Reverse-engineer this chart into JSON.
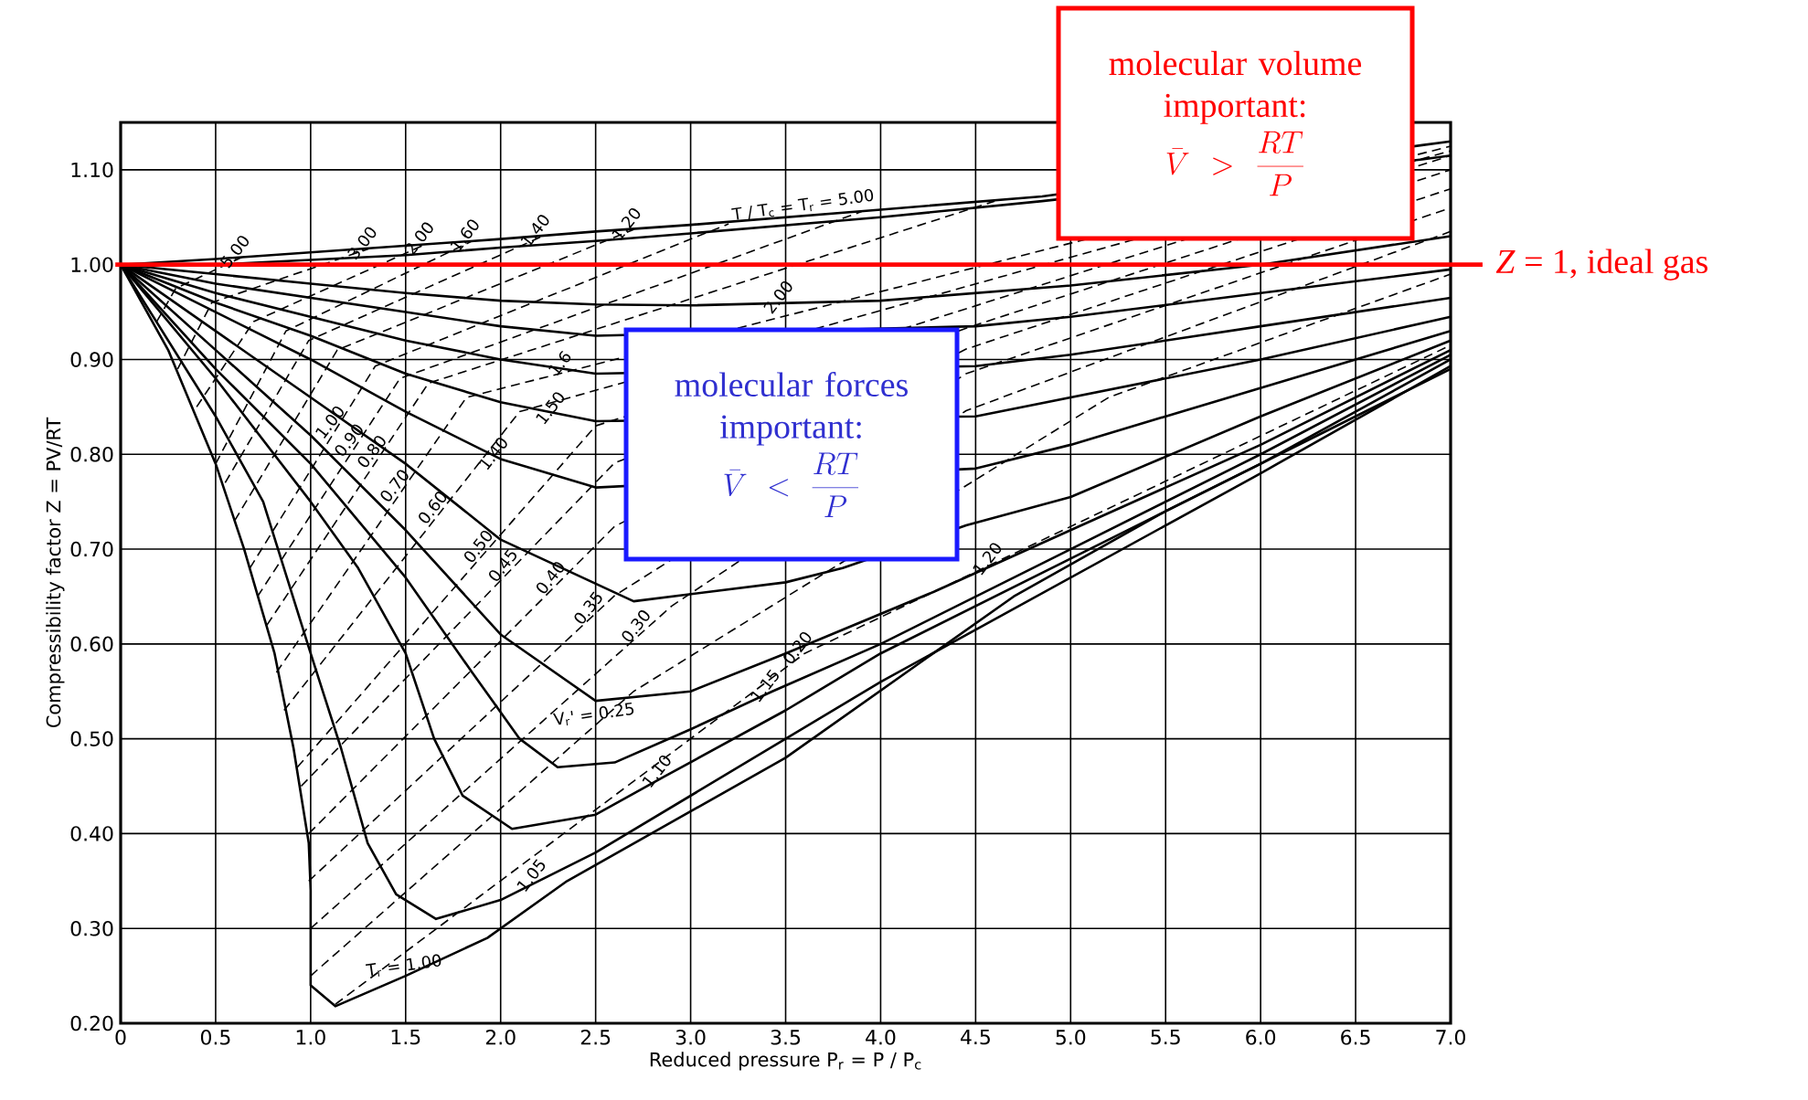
{
  "chart_data": {
    "type": "line",
    "xlabel": "Reduced pressure P$_{r}$ = P / P$_{c}$",
    "ylabel": "Compressibility factor Z = PV/RT",
    "xlim": [
      0,
      7
    ],
    "ylim": [
      0.2,
      1.15
    ],
    "xticks": [
      0,
      0.5,
      {
        "value": 1,
        "label": "1.0"
      },
      1.5,
      {
        "value": 2,
        "label": "2.0"
      },
      2.5,
      {
        "value": 3,
        "label": "3.0"
      },
      3.5,
      {
        "value": 4,
        "label": "4.0"
      },
      4.5,
      {
        "value": 5,
        "label": "5.0"
      },
      5.5,
      {
        "value": 6,
        "label": "6.0"
      },
      6.5,
      {
        "value": 7,
        "label": "7.0"
      }
    ],
    "yticks": [
      {
        "value": 0.2,
        "label": "0.20"
      },
      {
        "value": 0.3,
        "label": "0.30"
      },
      {
        "value": 0.4,
        "label": "0.40"
      },
      {
        "value": 0.5,
        "label": "0.50"
      },
      {
        "value": 0.6,
        "label": "0.60"
      },
      {
        "value": 0.7,
        "label": "0.70"
      },
      {
        "value": 0.8,
        "label": "0.80"
      },
      {
        "value": 0.9,
        "label": "0.90"
      },
      {
        "value": 1.0,
        "label": "1.00"
      },
      {
        "value": 1.1,
        "label": "1.10"
      }
    ],
    "grid": true,
    "series": [
      {
        "color": "#000000",
        "line_style": "solid",
        "x": [
          0,
          0.25,
          0.5,
          0.65,
          0.81,
          0.91,
          0.99,
          1.0,
          1.0,
          1.13,
          1.5,
          1.93,
          2.35,
          3.5,
          4.7,
          5.5,
          6.3,
          7.0
        ],
        "values": [
          1.0,
          0.91,
          0.79,
          0.7,
          0.59,
          0.49,
          0.39,
          0.34,
          0.24,
          0.218,
          0.25,
          0.29,
          0.35,
          0.48,
          0.65,
          0.74,
          0.82,
          0.89
        ]
      },
      {
        "color": "#000000",
        "line_style": "solid",
        "x": [
          0,
          0.5,
          0.75,
          1.0,
          1.16,
          1.3,
          1.45,
          1.66,
          2.0,
          2.5,
          3.0,
          3.5,
          4.0,
          5.0,
          6.0,
          7.0
        ],
        "values": [
          1.0,
          0.84,
          0.75,
          0.59,
          0.49,
          0.39,
          0.336,
          0.31,
          0.33,
          0.38,
          0.44,
          0.5,
          0.56,
          0.67,
          0.78,
          0.893
        ]
      },
      {
        "color": "#000000",
        "line_style": "solid",
        "x": [
          0,
          0.5,
          1.0,
          1.25,
          1.5,
          1.65,
          1.8,
          2.06,
          2.5,
          2.86,
          3.5,
          4.0,
          5.0,
          6.0,
          7.0
        ],
        "values": [
          1.0,
          0.88,
          0.75,
          0.68,
          0.59,
          0.5,
          0.44,
          0.405,
          0.42,
          0.46,
          0.53,
          0.59,
          0.69,
          0.79,
          0.9
        ]
      },
      {
        "color": "#000000",
        "line_style": "solid",
        "x": [
          0,
          0.5,
          1.0,
          1.5,
          1.85,
          2.1,
          2.3,
          2.6,
          3.0,
          3.43,
          4.0,
          5.0,
          6.0,
          7.0
        ],
        "values": [
          1.0,
          0.89,
          0.79,
          0.67,
          0.57,
          0.5,
          0.47,
          0.475,
          0.51,
          0.55,
          0.6,
          0.7,
          0.8,
          0.905
        ]
      },
      {
        "color": "#000000",
        "line_style": "solid",
        "x": [
          0,
          0.5,
          1.0,
          1.5,
          2.0,
          2.5,
          3.0,
          3.5,
          4.28,
          5.0,
          6.0,
          7.0
        ],
        "values": [
          1.0,
          0.91,
          0.82,
          0.72,
          0.61,
          0.54,
          0.55,
          0.59,
          0.655,
          0.72,
          0.81,
          0.91
        ]
      },
      {
        "color": "#000000",
        "line_style": "solid",
        "x": [
          0,
          0.5,
          1.0,
          1.5,
          2.0,
          2.7,
          3.5,
          3.8,
          4.45,
          5.0,
          6.0,
          7.0
        ],
        "values": [
          1.0,
          0.93,
          0.86,
          0.79,
          0.71,
          0.645,
          0.665,
          0.68,
          0.725,
          0.755,
          0.84,
          0.92
        ]
      },
      {
        "color": "#000000",
        "line_style": "solid",
        "x": [
          0,
          0.5,
          1.0,
          1.5,
          2.0,
          2.5,
          4.5,
          5.0,
          6.0,
          7.0
        ],
        "values": [
          1.0,
          0.95,
          0.9,
          0.845,
          0.795,
          0.765,
          0.785,
          0.81,
          0.87,
          0.93
        ]
      },
      {
        "color": "#000000",
        "line_style": "solid",
        "x": [
          0,
          0.5,
          1.0,
          1.5,
          2.0,
          2.5,
          4.5,
          5.0,
          6.0,
          7.0
        ],
        "values": [
          1.0,
          0.96,
          0.925,
          0.885,
          0.855,
          0.835,
          0.84,
          0.86,
          0.9,
          0.945
        ]
      },
      {
        "color": "#000000",
        "line_style": "solid",
        "x": [
          0,
          0.5,
          1.0,
          1.5,
          2.0,
          2.5,
          4.5,
          5.0,
          6.0,
          7.0
        ],
        "values": [
          1.0,
          0.97,
          0.945,
          0.92,
          0.9,
          0.885,
          0.893,
          0.905,
          0.935,
          0.965
        ]
      },
      {
        "color": "#000000",
        "line_style": "solid",
        "x": [
          0,
          0.5,
          1.0,
          1.5,
          2.0,
          2.5,
          4.5,
          5.0,
          6.0,
          7.0
        ],
        "values": [
          1.0,
          0.98,
          0.965,
          0.95,
          0.935,
          0.925,
          0.935,
          0.945,
          0.97,
          0.995
        ]
      },
      {
        "color": "#000000",
        "line_style": "solid",
        "x": [
          0,
          0.5,
          1.0,
          1.5,
          2.0,
          2.5,
          3.0,
          4.0,
          5.0,
          6.0,
          7.0
        ],
        "values": [
          1.0,
          0.99,
          0.98,
          0.97,
          0.962,
          0.958,
          0.957,
          0.962,
          0.978,
          1.0,
          1.03
        ]
      },
      {
        "color": "#000000",
        "line_style": "solid",
        "x": [
          0,
          0.5,
          1.0,
          1.5,
          2.0,
          2.5,
          3.0,
          4.0,
          4.85,
          6.85,
          7.0
        ],
        "values": [
          1.0,
          1.0,
          1.005,
          1.01,
          1.018,
          1.025,
          1.033,
          1.05,
          1.067,
          1.111,
          1.115
        ]
      },
      {
        "color": "#000000",
        "line_style": "solid",
        "x": [
          0,
          0.5,
          1.0,
          1.5,
          2.0,
          2.5,
          3.0,
          4.0,
          4.85,
          6.85,
          7.0
        ],
        "values": [
          1.0,
          1.006,
          1.013,
          1.02,
          1.027,
          1.035,
          1.042,
          1.058,
          1.072,
          1.126,
          1.13
        ]
      },
      {
        "color": "#000000",
        "line_style": "dashed",
        "x": [
          0.19,
          0.29,
          0.64
        ],
        "values": [
          0.94,
          0.975,
          1.008
        ]
      },
      {
        "color": "#000000",
        "line_style": "dashed",
        "x": [
          0.3,
          0.48,
          1.31
        ],
        "values": [
          0.89,
          0.96,
          1.017
        ]
      },
      {
        "color": "#000000",
        "line_style": "dashed",
        "x": [
          0.4,
          0.7,
          1.61
        ],
        "values": [
          0.85,
          0.94,
          1.022
        ]
      },
      {
        "color": "#000000",
        "line_style": "dashed",
        "x": [
          0.5,
          0.87,
          1.85
        ],
        "values": [
          0.79,
          0.93,
          1.025
        ]
      },
      {
        "color": "#000000",
        "line_style": "dashed",
        "x": [
          0.55,
          0.99,
          2.22
        ],
        "values": [
          0.77,
          0.92,
          1.03
        ]
      },
      {
        "color": "#000000",
        "line_style": "dashed",
        "x": [
          0.6,
          1.14,
          2.7
        ],
        "values": [
          0.73,
          0.91,
          1.037
        ]
      },
      {
        "color": "#000000",
        "line_style": "dashed",
        "x": [
          0.68,
          1.34,
          3.2
        ],
        "values": [
          0.68,
          0.893,
          1.043
        ]
      },
      {
        "color": "#000000",
        "line_style": "dashed",
        "x": [
          0.72,
          1.47,
          3.9
        ],
        "values": [
          0.65,
          0.88,
          1.056
        ]
      },
      {
        "color": "#000000",
        "line_style": "dashed",
        "x": [
          0.77,
          1.62,
          4.6
        ],
        "values": [
          0.62,
          0.875,
          1.067
        ]
      },
      {
        "color": "#000000",
        "line_style": "dashed",
        "x": [
          0.82,
          1.82,
          7.0
        ],
        "values": [
          0.57,
          0.86,
          1.125
        ]
      },
      {
        "color": "#000000",
        "line_style": "dashed",
        "x": [
          0.86,
          2.1,
          7.0
        ],
        "values": [
          0.53,
          0.845,
          1.12
        ]
      },
      {
        "color": "#000000",
        "line_style": "dashed",
        "x": [
          0.93,
          2.5,
          7.0
        ],
        "values": [
          0.47,
          0.83,
          1.115
        ]
      },
      {
        "color": "#000000",
        "line_style": "dashed",
        "x": [
          0.95,
          2.6,
          4.45,
          7.0
        ],
        "values": [
          0.45,
          0.791,
          0.933,
          1.1
        ]
      },
      {
        "color": "#000000",
        "line_style": "dashed",
        "x": [
          0.99,
          2.6,
          4.45,
          7.0
        ],
        "values": [
          0.4,
          0.724,
          0.911,
          1.08
        ]
      },
      {
        "color": "#000000",
        "line_style": "dashed",
        "x": [
          0.99,
          2.6,
          4.45,
          7.0
        ],
        "values": [
          0.35,
          0.651,
          0.885,
          1.06
        ]
      },
      {
        "color": "#000000",
        "line_style": "dashed",
        "x": [
          1.0,
          2.9,
          4.45,
          7.0
        ],
        "values": [
          0.3,
          0.64,
          0.846,
          1.035
        ]
      },
      {
        "color": "#000000",
        "line_style": "dashed",
        "x": [
          1.0,
          2.7,
          5.2,
          7.0
        ],
        "values": [
          0.25,
          0.55,
          0.86,
          0.99
        ]
      },
      {
        "color": "#000000",
        "line_style": "dashed",
        "x": [
          1.13,
          3.6,
          7.0
        ],
        "values": [
          0.22,
          0.59,
          0.915
        ]
      }
    ],
    "ref_lines": [
      {
        "axis": "y",
        "value": 1.0,
        "label": "*Z* = 1, ideal gas",
        "color": "#ff0000"
      }
    ],
    "annotations": [
      "molecular volume important:",
      "\\bar{V} > \\frac{RT}{P}",
      "molecular forces important:",
      "\\bar{V} < \\frac{RT}{P}",
      {
        "text": "T / T$_{c}$ = T$_{r}$ = 5.00",
        "x": 3.6,
        "y": 1.052
      },
      {
        "text": "2.00",
        "x": 3.5,
        "y": 0.96
      },
      {
        "text": "1.6",
        "x": 2.35,
        "y": 0.89
      },
      {
        "text": "1.50",
        "x": 2.3,
        "y": 0.843
      },
      {
        "text": "1.40",
        "x": 2.0,
        "y": 0.795
      },
      {
        "text": "1.20",
        "x": 4.6,
        "y": 0.684
      },
      {
        "text": "1.15",
        "x": 3.43,
        "y": 0.55
      },
      {
        "text": "1.10",
        "x": 2.86,
        "y": 0.46
      },
      {
        "text": "1.05",
        "x": 2.2,
        "y": 0.35
      },
      {
        "text": "T$_{r}$ = 1.00",
        "x": 1.5,
        "y": 0.25
      },
      {
        "text": "5.00",
        "x": 0.64,
        "y": 1.008
      },
      {
        "text": "3.00",
        "x": 1.31,
        "y": 1.017
      },
      {
        "text": "2.00",
        "x": 1.61,
        "y": 1.022
      },
      {
        "text": "1.60",
        "x": 1.85,
        "y": 1.025
      },
      {
        "text": "1.40",
        "x": 2.22,
        "y": 1.03
      },
      {
        "text": "1.20",
        "x": 2.7,
        "y": 1.037
      },
      {
        "text": "1.00",
        "x": 1.14,
        "y": 0.828
      },
      {
        "text": "0.90",
        "x": 1.24,
        "y": 0.809
      },
      {
        "text": "0.80",
        "x": 1.36,
        "y": 0.797
      },
      {
        "text": "0.70",
        "x": 1.48,
        "y": 0.761
      },
      {
        "text": "0.60",
        "x": 1.68,
        "y": 0.738
      },
      {
        "text": "0.50",
        "x": 1.92,
        "y": 0.697
      },
      {
        "text": "0.45",
        "x": 2.05,
        "y": 0.677
      },
      {
        "text": "0.40",
        "x": 2.3,
        "y": 0.664
      },
      {
        "text": "0.35",
        "x": 2.5,
        "y": 0.632
      },
      {
        "text": "0.30",
        "x": 2.75,
        "y": 0.613
      },
      {
        "text": "V$_{r}$' = 0.25",
        "x": 2.5,
        "y": 0.515
      },
      {
        "text": "0.20",
        "x": 3.6,
        "y": 0.59
      }
    ]
  }
}
